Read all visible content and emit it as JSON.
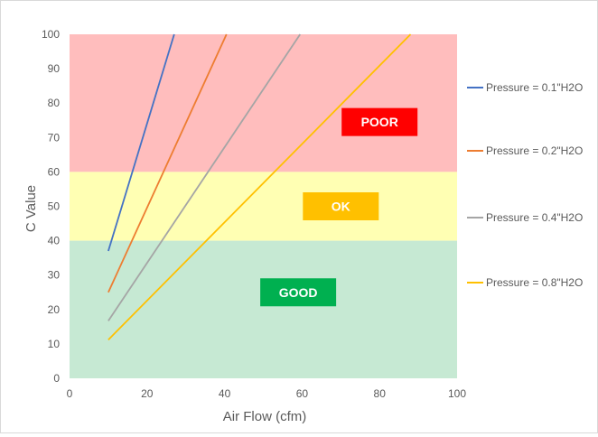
{
  "chart_data": {
    "type": "line",
    "title": "",
    "xlabel": "Air Flow (cfm)",
    "ylabel": "C Value",
    "xlim": [
      0,
      100
    ],
    "ylim": [
      0,
      100
    ],
    "xticks": [
      0,
      20,
      40,
      60,
      80,
      100
    ],
    "yticks": [
      0,
      10,
      20,
      30,
      40,
      50,
      60,
      70,
      80,
      90,
      100
    ],
    "grid": false,
    "legend_position": "right",
    "zones": [
      {
        "name": "POOR",
        "y_from": 60,
        "y_to": 100,
        "fill": "#ffbdbd",
        "label": "POOR",
        "label_fill": "#ff0000",
        "label_text_color": "#ffffff",
        "label_x": 80,
        "label_y": 74.5
      },
      {
        "name": "OK",
        "y_from": 40,
        "y_to": 60,
        "fill": "#ffffb3",
        "label": "OK",
        "label_fill": "#ffc000",
        "label_text_color": "#ffffff",
        "label_x": 70,
        "label_y": 50
      },
      {
        "name": "GOOD",
        "y_from": 0,
        "y_to": 40,
        "fill": "#c6e9d3",
        "label": "GOOD",
        "label_fill": "#00b050",
        "label_text_color": "#ffffff",
        "label_x": 59,
        "label_y": 25
      }
    ],
    "series": [
      {
        "name": "Pressure = 0.1\"H2O",
        "color": "#4472c4",
        "x": [
          10,
          27
        ],
        "y": [
          37,
          100
        ]
      },
      {
        "name": "Pressure = 0.2\"H2O",
        "color": "#ed7d31",
        "x": [
          10,
          40.5
        ],
        "y": [
          25,
          100
        ]
      },
      {
        "name": "Pressure = 0.4\"H2O",
        "color": "#a5a5a5",
        "x": [
          10,
          59.5
        ],
        "y": [
          16.7,
          100
        ]
      },
      {
        "name": "Pressure = 0.8\"H2O",
        "color": "#ffc000",
        "x": [
          10,
          88
        ],
        "y": [
          11.2,
          100
        ]
      }
    ]
  }
}
